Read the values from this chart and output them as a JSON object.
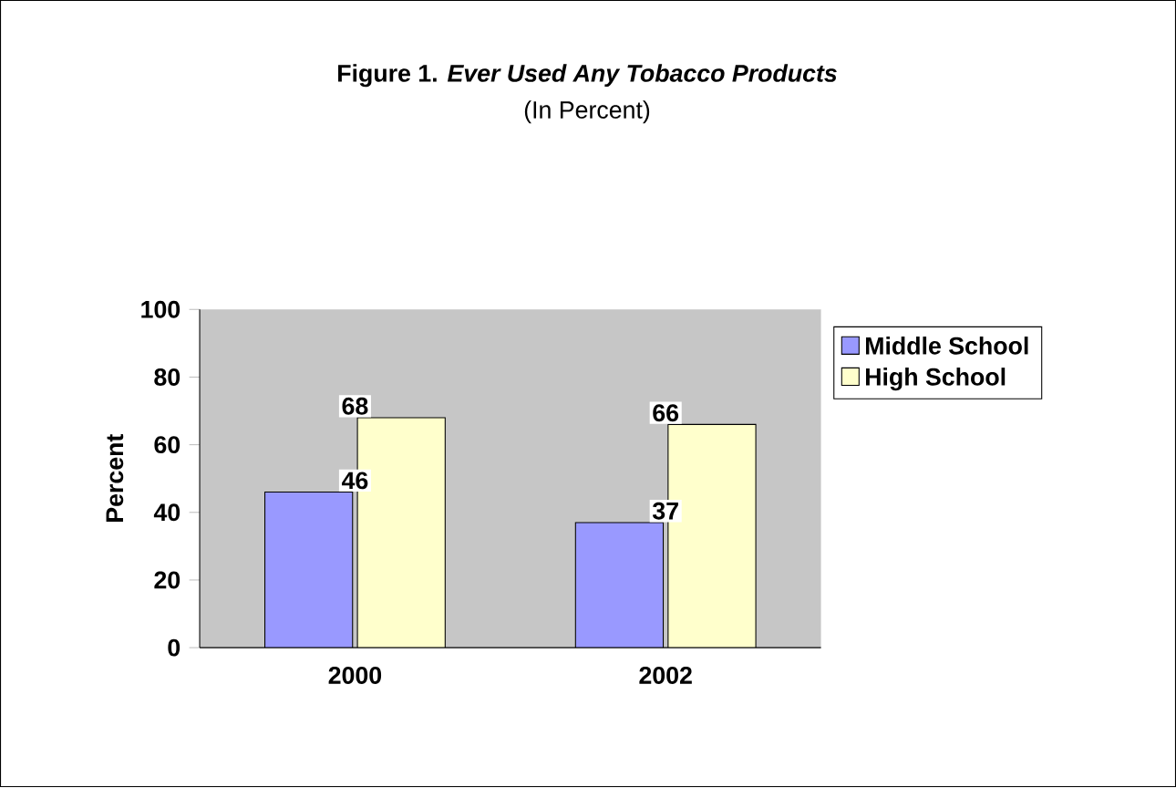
{
  "chart_data": {
    "type": "bar",
    "title": "**Figure 1.** *Ever Used Any Tobacco Products*",
    "subtitle": "(In Percent)",
    "ylabel": "Percent",
    "categories": [
      "2000",
      "2002"
    ],
    "series": [
      {
        "name": "Middle School",
        "color": "#9999ff",
        "values": [
          46,
          37
        ]
      },
      {
        "name": "High School",
        "color": "#ffffcc",
        "values": [
          68,
          66
        ]
      }
    ],
    "ylim": [
      0,
      100
    ],
    "yticks": [
      0,
      20,
      40,
      60,
      80,
      100
    ],
    "data_labels": true,
    "legend": "right"
  }
}
